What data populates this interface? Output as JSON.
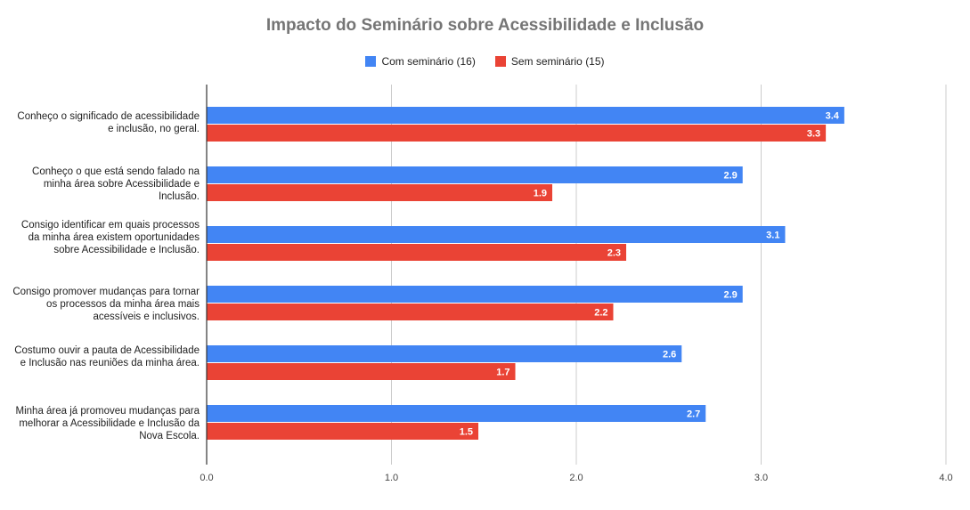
{
  "chart_data": {
    "type": "bar",
    "orientation": "horizontal",
    "title": "Impacto do Seminário sobre Acessibilidade e Inclusão",
    "categories": [
      "Conheço o significado de acessibilidade e inclusão, no geral.",
      "Conheço o que está sendo falado na minha área sobre Acessibilidade e Inclusão.",
      "Consigo identificar em quais processos da minha área existem oportunidades sobre Acessibilidade e Inclusão.",
      "Consigo promover mudanças para tornar os processos da minha área mais acessíveis e inclusivos.",
      "Costumo ouvir a pauta de Acessibilidade e Inclusão nas reuniões da minha área.",
      "Minha área já promoveu mudanças para melhorar a Acessibilidade e Inclusão da Nova Escola."
    ],
    "series": [
      {
        "name": "Com seminário (16)",
        "color": "#4285f4",
        "values": [
          3.45,
          2.9,
          3.13,
          2.9,
          2.57,
          2.7
        ],
        "labels": [
          "3.4",
          "2.9",
          "3.1",
          "2.9",
          "2.6",
          "2.7"
        ]
      },
      {
        "name": "Sem seminário (15)",
        "color": "#ea4335",
        "values": [
          3.35,
          1.87,
          2.27,
          2.2,
          1.67,
          1.47
        ],
        "labels": [
          "3.3",
          "1.9",
          "2.3",
          "2.2",
          "1.7",
          "1.5"
        ]
      }
    ],
    "xlim": [
      0,
      4
    ],
    "xticks": [
      "0.0",
      "1.0",
      "2.0",
      "3.0",
      "4.0"
    ],
    "grid": true,
    "legend_position": "top"
  }
}
